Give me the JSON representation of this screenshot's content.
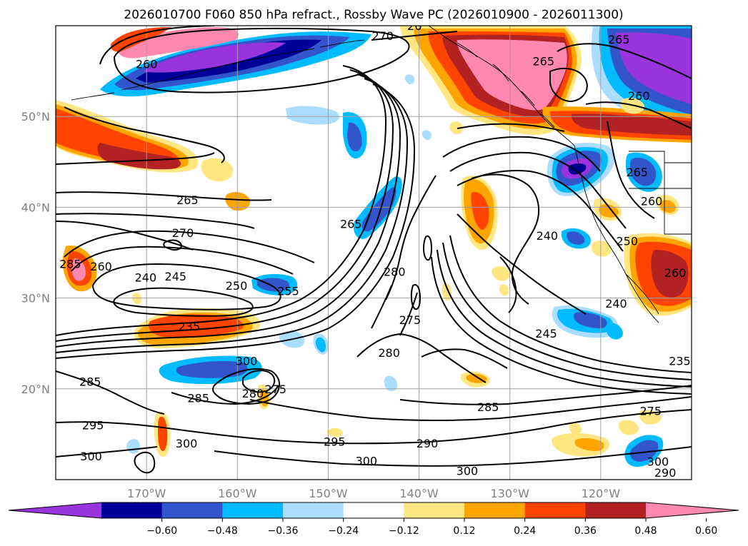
{
  "title": "2026010700 F060 850 hPa refract., Rossby Wave PC (2026010900 - 2026011300)",
  "map": {
    "lon_range": [
      -180,
      -110
    ],
    "lat_range": [
      10,
      60
    ],
    "lon_ticks": [
      {
        "value": -170,
        "label": "170°W"
      },
      {
        "value": -160,
        "label": "160°W"
      },
      {
        "value": -150,
        "label": "150°W"
      },
      {
        "value": -140,
        "label": "140°W"
      },
      {
        "value": -130,
        "label": "130°W"
      },
      {
        "value": -120,
        "label": "120°W"
      }
    ],
    "lat_ticks": [
      {
        "value": 20,
        "label": "20°N"
      },
      {
        "value": 30,
        "label": "30°N"
      },
      {
        "value": 40,
        "label": "40°N"
      },
      {
        "value": 50,
        "label": "50°N"
      }
    ],
    "grid": true,
    "colorbar": {
      "levels": [
        -0.6,
        -0.48,
        -0.36,
        -0.24,
        -0.12,
        0.12,
        0.24,
        0.36,
        0.48,
        0.6
      ],
      "labels": [
        "−0.60",
        "−0.48",
        "−0.36",
        "−0.24",
        "−0.12",
        "0.12",
        "0.24",
        "0.36",
        "0.48",
        "0.60"
      ],
      "colors": [
        "#9933dd",
        "#000099",
        "#3355cc",
        "#00bbff",
        "#aaddff",
        "#ffffff",
        "#ffe680",
        "#ffa500",
        "#ff4400",
        "#b22222",
        "#ff88b0"
      ],
      "extend": "both"
    },
    "contour_labels": [
      {
        "text": "270",
        "lon": -166.0,
        "lat": 37.2
      },
      {
        "text": "265",
        "lon": -165.5,
        "lat": 40.8
      },
      {
        "text": "270",
        "lon": -144.0,
        "lat": 58.9
      },
      {
        "text": "260",
        "lon": -170.0,
        "lat": 55.8
      },
      {
        "text": "265",
        "lon": -118.0,
        "lat": 58.5
      },
      {
        "text": "265",
        "lon": -126.3,
        "lat": 56.1
      },
      {
        "text": "260",
        "lon": -115.8,
        "lat": 52.3
      },
      {
        "text": "265",
        "lon": -116.0,
        "lat": 43.9
      },
      {
        "text": "260",
        "lon": -114.4,
        "lat": 40.7
      },
      {
        "text": "240",
        "lon": -125.9,
        "lat": 36.9
      },
      {
        "text": "250",
        "lon": -117.1,
        "lat": 36.3
      },
      {
        "text": "260",
        "lon": -111.8,
        "lat": 32.8
      },
      {
        "text": "240",
        "lon": -118.3,
        "lat": 29.4
      },
      {
        "text": "245",
        "lon": -126.0,
        "lat": 26.1
      },
      {
        "text": "235",
        "lon": -111.3,
        "lat": 23.1
      },
      {
        "text": "275",
        "lon": -114.5,
        "lat": 17.6
      },
      {
        "text": "300",
        "lon": -113.7,
        "lat": 12.0
      },
      {
        "text": "290",
        "lon": -112.9,
        "lat": 10.8
      },
      {
        "text": "265",
        "lon": -147.5,
        "lat": 38.2
      },
      {
        "text": "280",
        "lon": -142.7,
        "lat": 32.9
      },
      {
        "text": "275",
        "lon": -141.0,
        "lat": 27.6
      },
      {
        "text": "280",
        "lon": -143.3,
        "lat": 24.0
      },
      {
        "text": "285",
        "lon": -132.4,
        "lat": 18.0
      },
      {
        "text": "290",
        "lon": -139.1,
        "lat": 14.0
      },
      {
        "text": "295",
        "lon": -149.3,
        "lat": 14.2
      },
      {
        "text": "300",
        "lon": -145.8,
        "lat": 12.1
      },
      {
        "text": "300",
        "lon": -134.7,
        "lat": 11.0
      },
      {
        "text": "240",
        "lon": -170.1,
        "lat": 32.3
      },
      {
        "text": "245",
        "lon": -166.8,
        "lat": 32.4
      },
      {
        "text": "250",
        "lon": -160.1,
        "lat": 31.4
      },
      {
        "text": "255",
        "lon": -154.4,
        "lat": 30.8
      },
      {
        "text": "235",
        "lon": -165.3,
        "lat": 26.9
      },
      {
        "text": "300",
        "lon": -159.0,
        "lat": 23.1
      },
      {
        "text": "280",
        "lon": -158.3,
        "lat": 19.5
      },
      {
        "text": "275",
        "lon": -155.8,
        "lat": 20.0
      },
      {
        "text": "285",
        "lon": -164.3,
        "lat": 19.0
      },
      {
        "text": "295",
        "lon": -175.9,
        "lat": 16.0
      },
      {
        "text": "300",
        "lon": -165.6,
        "lat": 14.0
      },
      {
        "text": "300",
        "lon": -176.1,
        "lat": 12.6
      },
      {
        "text": "285",
        "lon": -176.2,
        "lat": 20.8
      },
      {
        "text": "285",
        "lon": -178.4,
        "lat": 33.8
      },
      {
        "text": "260",
        "lon": -175.0,
        "lat": 33.5
      },
      {
        "text": "26",
        "lon": -140.5,
        "lat": 60.0
      }
    ]
  }
}
